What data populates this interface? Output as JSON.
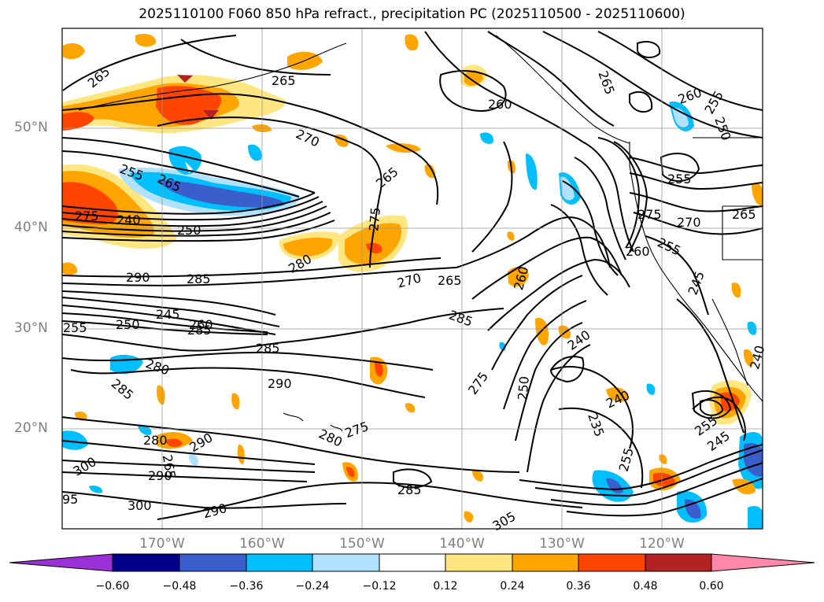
{
  "title": "2025110100 F060 850 hPa refract., precipitation PC (2025110500 - 2025110600)",
  "lat_labels": [
    "50°N",
    "40°N",
    "30°N",
    "20°N"
  ],
  "lon_labels": [
    "170°W",
    "160°W",
    "150°W",
    "140°W",
    "130°W",
    "120°W"
  ],
  "colorbar": {
    "colors": [
      "#9b30d9",
      "#00008b",
      "#3a5fcd",
      "#00bfff",
      "#b0e2ff",
      "#ffffff",
      "#ffe680",
      "#ffa500",
      "#ff4500",
      "#b22222",
      "#ff88aa"
    ],
    "ticks": [
      "−0.60",
      "−0.48",
      "−0.36",
      "−0.24",
      "−0.12",
      "0.12",
      "0.24",
      "0.36",
      "0.48",
      "0.60"
    ]
  },
  "contour_labels": [
    "265",
    "265",
    "260",
    "265",
    "260",
    "255",
    "250",
    "270",
    "265",
    "275",
    "255",
    "265",
    "255",
    "275",
    "270",
    "265",
    "275",
    "240",
    "250",
    "280",
    "260",
    "255",
    "290",
    "285",
    "270",
    "265",
    "260",
    "245",
    "255",
    "250",
    "245",
    "260",
    "285",
    "285",
    "280",
    "290",
    "285",
    "285",
    "240",
    "250",
    "275",
    "240",
    "235",
    "255",
    "245",
    "280",
    "290",
    "265",
    "290",
    "300",
    "280",
    "275",
    "285",
    "255",
    "290",
    "300",
    "305",
    "95",
    "240"
  ]
}
